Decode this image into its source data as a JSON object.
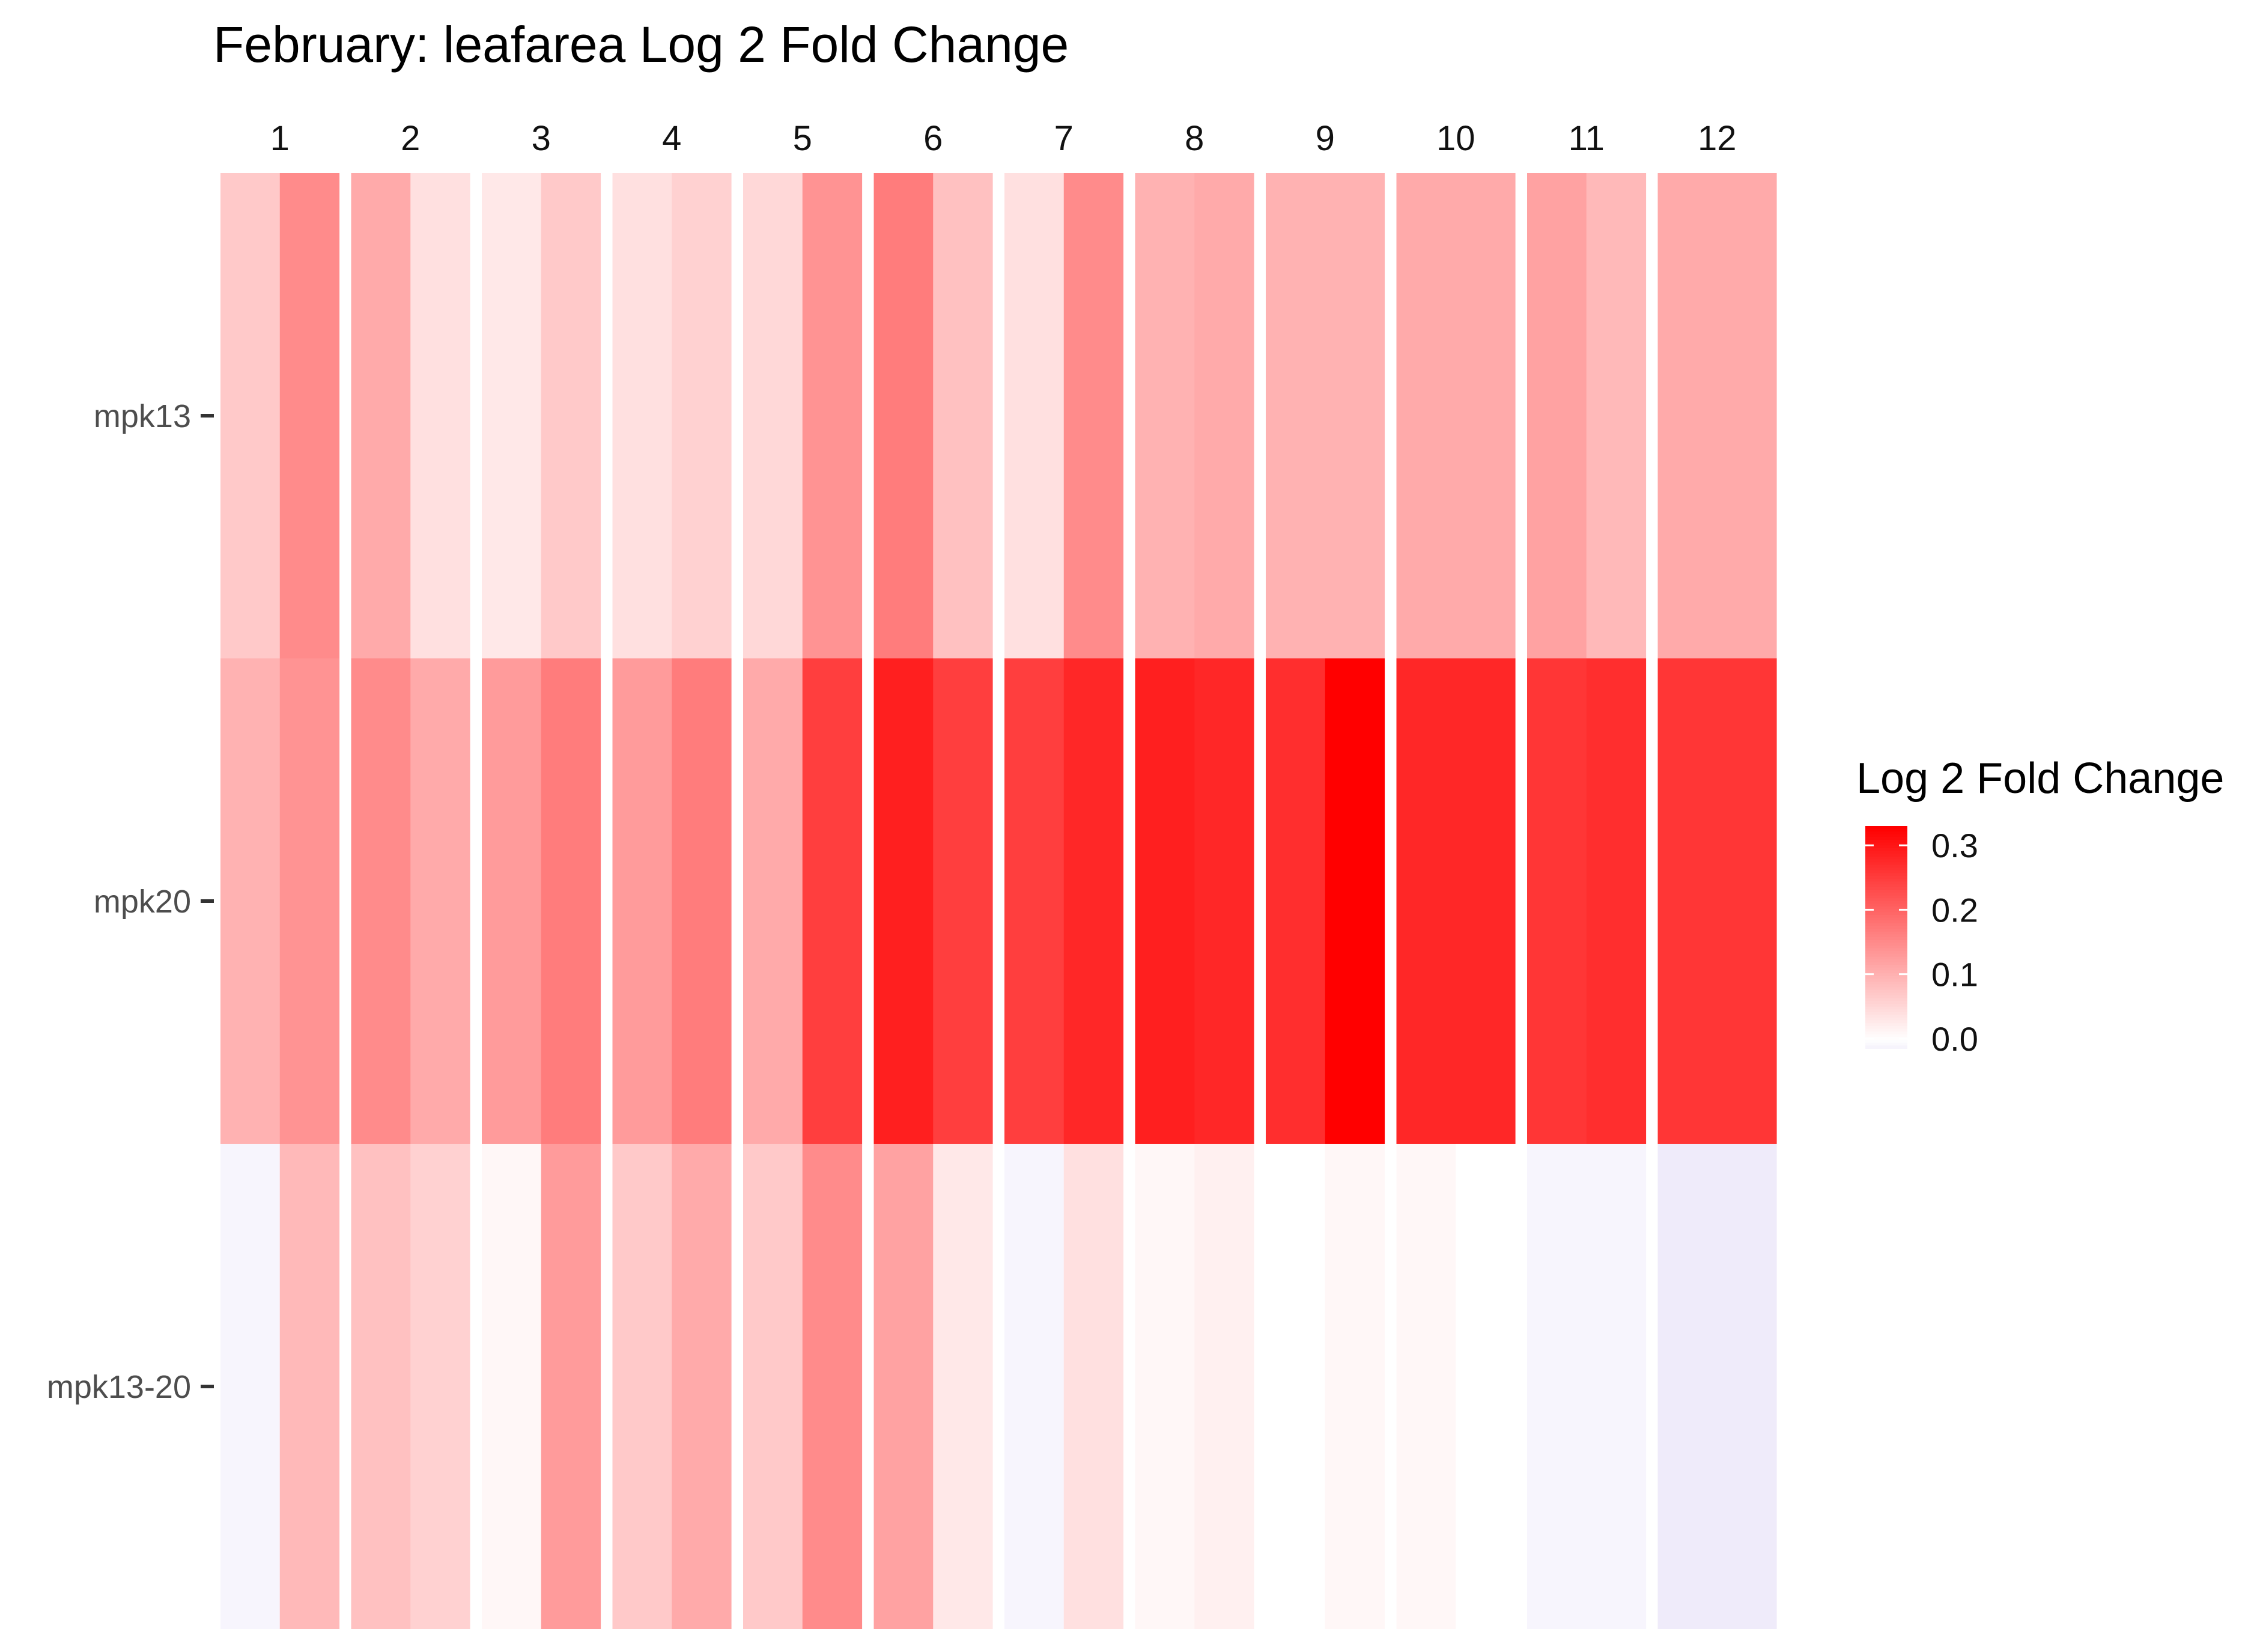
{
  "chart_data": {
    "type": "heatmap",
    "title": "February: leafarea Log 2 Fold Change",
    "facet_labels": [
      "1",
      "2",
      "3",
      "4",
      "5",
      "6",
      "7",
      "8",
      "9",
      "10",
      "11",
      "12"
    ],
    "rows": [
      "mpk13",
      "mpk20",
      "mpk13-20"
    ],
    "subcolumns_per_facet": 2,
    "values": {
      "mpk13": [
        [
          0.07,
          0.15
        ],
        [
          0.11,
          0.04
        ],
        [
          0.03,
          0.07
        ],
        [
          0.04,
          0.06
        ],
        [
          0.05,
          0.14
        ],
        [
          0.17,
          0.08
        ],
        [
          0.04,
          0.15
        ],
        [
          0.1,
          0.11
        ],
        [
          0.1,
          0.1
        ],
        [
          0.11,
          0.11
        ],
        [
          0.12,
          0.09
        ],
        [
          0.11,
          0.11
        ]
      ],
      "mpk20": [
        [
          0.1,
          0.14
        ],
        [
          0.15,
          0.11
        ],
        [
          0.13,
          0.17
        ],
        [
          0.13,
          0.17
        ],
        [
          0.11,
          0.25
        ],
        [
          0.29,
          0.25
        ],
        [
          0.25,
          0.28
        ],
        [
          0.29,
          0.28
        ],
        [
          0.27,
          0.33
        ],
        [
          0.28,
          0.28
        ],
        [
          0.26,
          0.27
        ],
        [
          0.26,
          0.26
        ]
      ],
      "mpk13-20": [
        [
          -0.01,
          0.09
        ],
        [
          0.08,
          0.06
        ],
        [
          0.01,
          0.13
        ],
        [
          0.07,
          0.11
        ],
        [
          0.07,
          0.15
        ],
        [
          0.12,
          0.03
        ],
        [
          -0.01,
          0.04
        ],
        [
          0.01,
          0.02
        ],
        [
          0.0,
          0.01
        ],
        [
          0.01,
          0.0
        ],
        [
          -0.01,
          -0.01
        ],
        [
          -0.02,
          -0.02
        ]
      ]
    },
    "color_scale": {
      "low_color": "#efebfa",
      "mid_color": "#ffffff",
      "high_color": "#ff0000",
      "domain": [
        -0.02,
        0.33
      ]
    },
    "legend": {
      "title": "Log 2 Fold Change",
      "ticks": [
        "0.3",
        "0.2",
        "0.1",
        "0.0"
      ],
      "tick_values": [
        0.3,
        0.2,
        0.1,
        0.0
      ],
      "placement": "right"
    }
  }
}
